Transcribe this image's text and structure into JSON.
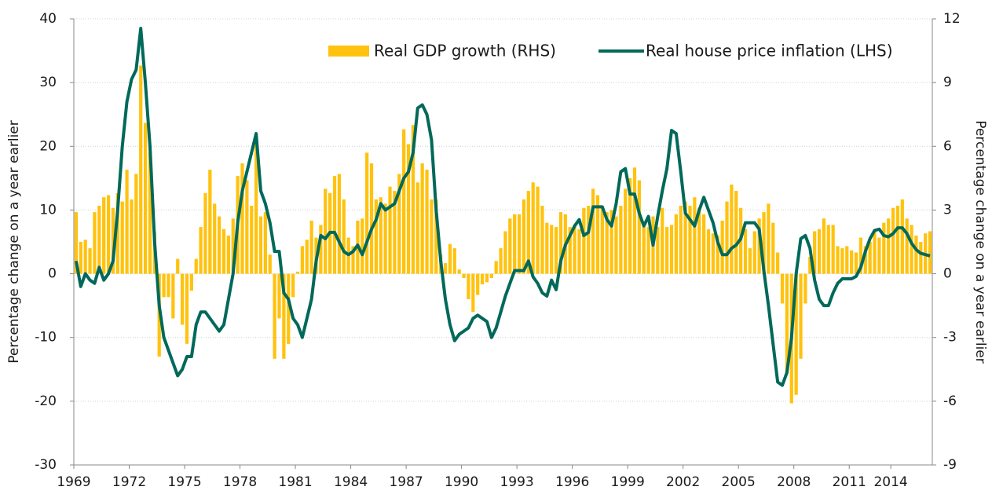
{
  "chart_data": {
    "type": "combo",
    "y_label": "Percentage change on a year earlier",
    "y2_label": "Percentage change on a year earlier",
    "categories": [
      "1969",
      null,
      null,
      null,
      null,
      null,
      null,
      null,
      null,
      null,
      null,
      null,
      "1972",
      null,
      null,
      null,
      null,
      null,
      null,
      null,
      null,
      null,
      null,
      null,
      "1975",
      null,
      null,
      null,
      null,
      null,
      null,
      null,
      null,
      null,
      null,
      null,
      "1978",
      null,
      null,
      null,
      null,
      null,
      null,
      null,
      null,
      null,
      null,
      null,
      "1981",
      null,
      null,
      null,
      null,
      null,
      null,
      null,
      null,
      null,
      null,
      null,
      "1984",
      null,
      null,
      null,
      null,
      null,
      null,
      null,
      null,
      null,
      null,
      null,
      "1987",
      null,
      null,
      null,
      null,
      null,
      null,
      null,
      null,
      null,
      null,
      null,
      "1990",
      null,
      null,
      null,
      null,
      null,
      null,
      null,
      null,
      null,
      null,
      null,
      "1993",
      null,
      null,
      null,
      null,
      null,
      null,
      null,
      null,
      null,
      null,
      null,
      "1996",
      null,
      null,
      null,
      null,
      null,
      null,
      null,
      null,
      null,
      null,
      null,
      "1999",
      null,
      null,
      null,
      null,
      null,
      null,
      null,
      null,
      null,
      null,
      null,
      "2002",
      null,
      null,
      null,
      null,
      null,
      null,
      null,
      null,
      null,
      null,
      null,
      "2005",
      null,
      null,
      null,
      null,
      null,
      null,
      null,
      null,
      null,
      null,
      null,
      "2008",
      null,
      null,
      null,
      null,
      null,
      null,
      null,
      null,
      null,
      null,
      null,
      "2011",
      null,
      null,
      null,
      null,
      null,
      null,
      null,
      null,
      "2014",
      null,
      null,
      null,
      null,
      null,
      null,
      null,
      null
    ],
    "series": [
      {
        "name": "Real GDP growth (RHS)",
        "type": "bar",
        "axis": "y2",
        "color": "#ffc20e",
        "values": [
          2.9,
          1.5,
          1.6,
          1.2,
          2.9,
          3.2,
          3.6,
          3.7,
          3.1,
          3.8,
          3.4,
          4.9,
          3.5,
          4.7,
          9.8,
          7.1,
          5.7,
          2,
          -3.9,
          -1.1,
          -1.1,
          -2.1,
          0.7,
          -2.4,
          -3.3,
          -0.8,
          0.7,
          2.2,
          3.8,
          4.9,
          3.3,
          2.7,
          2.1,
          1.8,
          2.6,
          4.6,
          5.2,
          4.4,
          3.2,
          6.4,
          2.7,
          2.9,
          0.9,
          -4,
          -2.1,
          -4,
          -3.3,
          -1.1,
          0.1,
          1.3,
          1.6,
          2.5,
          1.7,
          2.3,
          4,
          3.8,
          4.6,
          4.7,
          3.5,
          1.7,
          1.3,
          2.5,
          2.6,
          5.7,
          5.2,
          3.5,
          3.6,
          3.3,
          4.1,
          3.9,
          4.7,
          6.8,
          6.1,
          7,
          4.3,
          5.2,
          4.9,
          3.5,
          3.5,
          0.9,
          0.5,
          1.4,
          1.2,
          0.2,
          -0.2,
          -1.2,
          -1.8,
          -1,
          -0.5,
          -0.4,
          -0.2,
          0.6,
          1.2,
          2,
          2.6,
          2.8,
          2.8,
          3.5,
          3.9,
          4.3,
          4.1,
          3.2,
          2.4,
          2.3,
          2.2,
          2.9,
          2.8,
          2.2,
          2.3,
          2.1,
          3.1,
          3.2,
          4,
          3.7,
          3.2,
          2.9,
          3,
          2.7,
          3.2,
          4,
          4.5,
          5,
          4.4,
          2.2,
          2.2,
          2.7,
          2.2,
          3.1,
          2.2,
          2.3,
          2.8,
          3.2,
          3.4,
          3.2,
          3.6,
          3.1,
          2.8,
          2.1,
          1.9,
          1.8,
          2.5,
          3.4,
          4.2,
          3.9,
          3.1,
          2.1,
          1.2,
          2,
          2.6,
          2.9,
          3.3,
          2.4,
          1,
          -1.4,
          -4.7,
          -6.1,
          -5.7,
          -4,
          -1.4,
          0.8,
          2,
          2.1,
          2.6,
          2.3,
          2.3,
          1.3,
          1.2,
          1.3,
          1.1,
          1,
          1.7,
          1.3,
          1.5,
          2.1,
          1.7,
          2.4,
          2.6,
          3.1,
          3.2,
          3.5,
          2.6,
          2.3,
          1.8,
          1.5,
          1.9,
          2
        ]
      },
      {
        "name": "Real house price inflation (LHS)",
        "type": "line",
        "axis": "y",
        "color": "#00695a",
        "values": [
          2,
          -2,
          0,
          -1,
          -1.5,
          1,
          -1,
          0,
          2,
          10,
          20,
          27,
          30.5,
          32,
          38.5,
          30,
          20,
          5,
          -5,
          -10,
          -12,
          -14,
          -16,
          -15,
          -13,
          -13,
          -8,
          -6,
          -6,
          -7,
          -8,
          -9,
          -8,
          -4,
          0,
          8,
          13,
          16,
          19,
          22,
          13,
          11,
          8,
          3.5,
          3.5,
          -3,
          -4,
          -7,
          -8,
          -10,
          -7,
          -4,
          2,
          6,
          5.5,
          6.5,
          6.5,
          5,
          3.5,
          3,
          3.5,
          4.5,
          3,
          5,
          7,
          8.5,
          11,
          10,
          10.5,
          11,
          13,
          15,
          16,
          19,
          26,
          26.5,
          25,
          21,
          10,
          2,
          -4,
          -8,
          -10.5,
          -9.5,
          -9,
          -8.5,
          -7,
          -6.5,
          -7,
          -7.5,
          -10,
          -8.5,
          -6,
          -3.5,
          -1.5,
          0.5,
          0.5,
          0.5,
          2,
          -0.5,
          -1.5,
          -3,
          -3.5,
          -1,
          -2.5,
          2,
          4.5,
          6,
          7.5,
          8.5,
          6,
          6.5,
          10.5,
          10.5,
          10.5,
          8.5,
          7.5,
          11,
          16,
          16.5,
          12.5,
          12.5,
          9.5,
          7.5,
          9,
          4.5,
          9,
          13,
          16.5,
          22.5,
          22,
          16,
          9.5,
          8.5,
          7.5,
          10,
          12,
          10,
          8,
          5,
          3,
          3,
          4,
          4.5,
          5.5,
          8,
          8,
          8,
          7,
          0.5,
          -5,
          -11,
          -17,
          -17.5,
          -15.5,
          -10,
          0,
          5.5,
          6,
          4,
          -1,
          -4,
          -5,
          -5,
          -3,
          -1.5,
          -0.8,
          -0.8,
          -0.8,
          -0.4,
          1,
          3.5,
          5.5,
          6.8,
          7,
          6,
          5.8,
          6.3,
          7.2,
          7.2,
          6.3,
          4.8,
          3.8,
          3.2,
          3,
          2.8
        ]
      }
    ],
    "ylim": [
      -30,
      40
    ],
    "yticks": [
      -30,
      -20,
      -10,
      0,
      10,
      20,
      30,
      40
    ],
    "y2lim": [
      -9,
      12
    ],
    "y2ticks": [
      -9,
      -6,
      -3,
      0,
      3,
      6,
      9,
      12
    ],
    "grid": true
  }
}
